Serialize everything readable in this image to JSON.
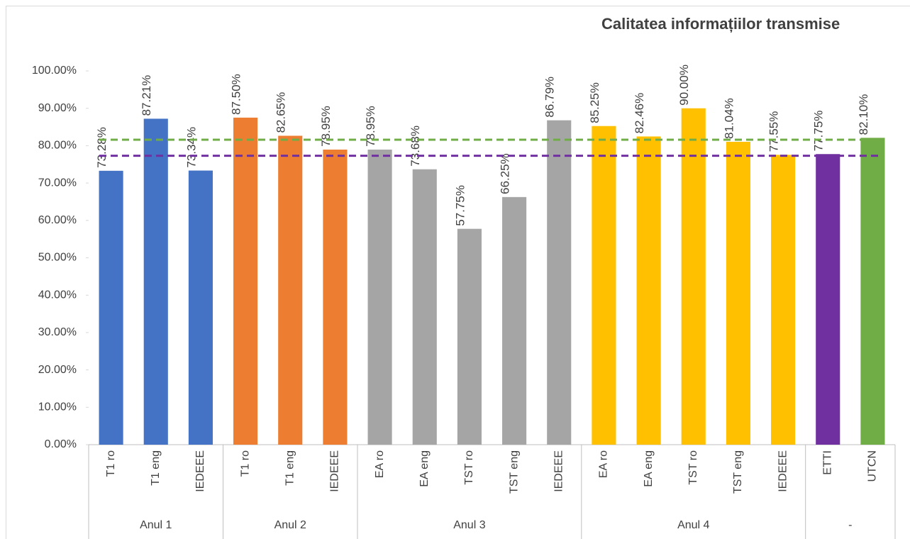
{
  "chart_data": {
    "type": "bar",
    "title": "Calitatea informațiilor transmise",
    "groups": [
      {
        "name": "Anul 1",
        "color": "#4472c4",
        "categories": [
          "T1 ro",
          "T1 eng",
          "IEDEEE"
        ],
        "values": [
          73.28,
          87.21,
          73.34
        ],
        "value_labels": [
          "73.28%",
          "87.21%",
          "73.34%"
        ]
      },
      {
        "name": "Anul 2",
        "color": "#ed7d31",
        "categories": [
          "T1 ro",
          "T1 eng",
          "IEDEEE"
        ],
        "values": [
          87.5,
          82.65,
          78.95
        ],
        "value_labels": [
          "87.50%",
          "82.65%",
          "78.95%"
        ]
      },
      {
        "name": "Anul 3",
        "color": "#a5a5a5",
        "categories": [
          "EA ro",
          "EA eng",
          "TST ro",
          "TST eng",
          "IEDEEE"
        ],
        "values": [
          78.95,
          73.68,
          57.75,
          66.25,
          86.79
        ],
        "value_labels": [
          "78.95%",
          "73.68%",
          "57.75%",
          "66.25%",
          "86.79%"
        ]
      },
      {
        "name": "Anul 4",
        "color": "#ffc000",
        "categories": [
          "EA ro",
          "EA eng",
          "TST ro",
          "TST eng",
          "IEDEEE"
        ],
        "values": [
          85.25,
          82.46,
          90,
          81.04,
          77.55
        ],
        "value_labels": [
          "85.25%",
          "82.46%",
          "90.00%",
          "81.04%",
          "77.55%"
        ]
      },
      {
        "name": "-",
        "colors": [
          "#7030a0",
          "#70ad47"
        ],
        "categories": [
          "ETTI",
          "UTCN"
        ],
        "values": [
          77.75,
          82.1
        ],
        "value_labels": [
          "77.75%",
          "82.10%"
        ]
      }
    ],
    "reference_lines": [
      {
        "value": 81.6,
        "color": "#70ad47"
      },
      {
        "value": 77.3,
        "color": "#7030a0"
      }
    ],
    "ylim": [
      0,
      100
    ],
    "yticks": [
      {
        "value": 0,
        "label": "0.00%"
      },
      {
        "value": 10,
        "label": "10.00%"
      },
      {
        "value": 20,
        "label": "20.00%"
      },
      {
        "value": 30,
        "label": "30.00%"
      },
      {
        "value": 40,
        "label": "40.00%"
      },
      {
        "value": 50,
        "label": "50.00%"
      },
      {
        "value": 60,
        "label": "60.00%"
      },
      {
        "value": 70,
        "label": "70.00%"
      },
      {
        "value": 80,
        "label": "80.00%"
      },
      {
        "value": 90,
        "label": "90.00%"
      },
      {
        "value": 100,
        "label": "100.00%"
      }
    ],
    "grid": false
  }
}
